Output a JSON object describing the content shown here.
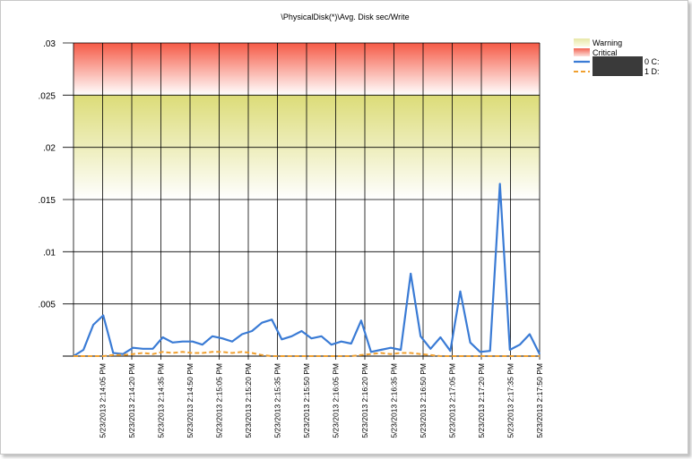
{
  "chart_data": {
    "type": "line",
    "title": "\\PhysicalDisk(*)\\Avg. Disk sec/Write",
    "xlabel": "",
    "ylabel": "",
    "ylim": [
      0,
      0.03
    ],
    "y_ticks": [
      ".03",
      ".025",
      ".02",
      ".015",
      ".01",
      ".005"
    ],
    "x_tick_labels": [
      "5/23/2013 2:14:05 PM",
      "5/23/2013 2:14:20 PM",
      "5/23/2013 2:14:35 PM",
      "5/23/2013 2:14:50 PM",
      "5/23/2013 2:15:05 PM",
      "5/23/2013 2:15:20 PM",
      "5/23/2013 2:15:35 PM",
      "5/23/2013 2:15:50 PM",
      "5/23/2013 2:16:05 PM",
      "5/23/2013 2:16:20 PM",
      "5/23/2013 2:16:35 PM",
      "5/23/2013 2:16:50 PM",
      "5/23/2013 2:17:05 PM",
      "5/23/2013 2:17:20 PM",
      "5/23/2013 2:17:35 PM",
      "5/23/2013 2:17:50 PM"
    ],
    "grid": true,
    "thresholds": [
      {
        "name": "Warning",
        "from": 0.015,
        "to": 0.025,
        "color": "#d8d870"
      },
      {
        "name": "Critical",
        "from": 0.025,
        "to": 0.03,
        "color": "#f05040"
      }
    ],
    "series": [
      {
        "name": "0 C:",
        "color": "#3a7bd5",
        "style": "solid",
        "values": [
          0.0,
          0.0006,
          0.003,
          0.0039,
          0.0003,
          0.0002,
          0.0008,
          0.0007,
          0.0007,
          0.0018,
          0.0013,
          0.0014,
          0.0014,
          0.0011,
          0.0019,
          0.0017,
          0.0014,
          0.0021,
          0.0024,
          0.0032,
          0.0035,
          0.0016,
          0.0019,
          0.0024,
          0.0017,
          0.0019,
          0.0011,
          0.0014,
          0.0012,
          0.0034,
          0.0004,
          0.0006,
          0.0008,
          0.0006,
          0.0079,
          0.0019,
          0.0007,
          0.0018,
          0.0005,
          0.0062,
          0.0013,
          0.0004,
          0.0005,
          0.0165,
          0.0006,
          0.0011,
          0.0021,
          0.0002
        ]
      },
      {
        "name": "1 D:",
        "color": "#f0a030",
        "style": "dashed",
        "values": [
          0.0,
          0.0,
          0.0,
          0.0,
          0.0001,
          0.0001,
          0.0002,
          0.0003,
          0.0002,
          0.0004,
          0.0003,
          0.0004,
          0.0003,
          0.0003,
          0.0004,
          0.0004,
          0.0003,
          0.0004,
          0.0003,
          0.0001,
          0.0,
          0.0,
          0.0,
          0.0,
          0.0,
          0.0,
          0.0,
          0.0,
          0.0,
          0.0001,
          0.0002,
          0.0003,
          0.0002,
          0.0003,
          0.0003,
          0.0002,
          0.0001,
          0.0,
          0.0,
          0.0,
          0.0,
          0.0,
          0.0,
          0.0,
          0.0,
          0.0,
          0.0,
          0.0
        ]
      }
    ],
    "legend": {
      "placement": "top-right",
      "entries": [
        "Warning",
        "Critical",
        "0 C:",
        "1 D:"
      ],
      "redacted_instance_color": "#3a3a3a"
    }
  }
}
